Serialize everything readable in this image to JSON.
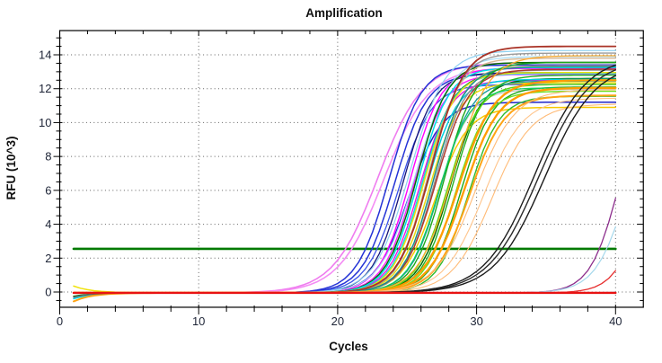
{
  "chart_data": {
    "type": "line",
    "title": "Amplification",
    "xlabel": "Cycles",
    "ylabel": "RFU (10^3)",
    "xlim": [
      0,
      42
    ],
    "ylim": [
      -0.9,
      15.43
    ],
    "x_ticks": [
      0,
      10,
      20,
      30,
      40
    ],
    "y_ticks": [
      0,
      2,
      4,
      6,
      8,
      10,
      12,
      14
    ],
    "x_minor_step": 2,
    "y_minor_step": 0.5,
    "grid": "dotted",
    "legend": "none",
    "data_x_range": [
      1,
      40
    ],
    "point_step": 0.5,
    "threshold": {
      "value": 2.55,
      "color": "#007a00",
      "width": 2.6,
      "x_start": 1,
      "x_end": 40
    },
    "baseline": {
      "value": -0.05,
      "color": "#e81212",
      "width": 2.4,
      "x_start": 1,
      "x_end": 40
    },
    "curve_model": "y = plateau/(1+exp(-k*(x-mid))) + base + tail*exp(-(x-1)/1.3)",
    "curve_base": -0.05,
    "curves": [
      {
        "c": "#ef7cef",
        "m": 22.9,
        "p": 13.6,
        "k": 0.62,
        "w": 1.6
      },
      {
        "c": "#f48cf4",
        "m": 23.3,
        "p": 13.3,
        "k": 0.62,
        "w": 1.6,
        "t": -0.3
      },
      {
        "c": "#2433d6",
        "m": 23.7,
        "p": 13.45,
        "k": 0.85,
        "w": 1.5
      },
      {
        "c": "#2433d6",
        "m": 24.1,
        "p": 12.95,
        "k": 0.85,
        "w": 1.5
      },
      {
        "c": "#3a52e8",
        "m": 24.4,
        "p": 12.3,
        "k": 0.85,
        "w": 1.3
      },
      {
        "c": "#2026c8",
        "m": 25.1,
        "p": 11.25,
        "k": 0.85,
        "w": 1.5
      },
      {
        "c": "#151578",
        "m": 24.7,
        "p": 13.0,
        "k": 0.9,
        "w": 1.3
      },
      {
        "c": "#ff00ff",
        "m": 25.2,
        "p": 13.25,
        "k": 0.9,
        "w": 1.4
      },
      {
        "c": "#ff22ff",
        "m": 25.5,
        "p": 12.9,
        "k": 0.9,
        "w": 1.4
      },
      {
        "c": "#e816e8",
        "m": 25.9,
        "p": 12.55,
        "k": 0.9,
        "w": 1.4
      },
      {
        "c": "#8ed0f0",
        "m": 25.2,
        "p": 14.3,
        "k": 0.8,
        "w": 1.2
      },
      {
        "c": "#a6dcf5",
        "m": 25.6,
        "p": 13.95,
        "k": 0.8,
        "w": 1.2
      },
      {
        "c": "#056e05",
        "m": 25.7,
        "p": 13.6,
        "k": 0.9,
        "w": 1.5,
        "t": -0.2
      },
      {
        "c": "#0a7d0a",
        "m": 26.1,
        "p": 13.0,
        "k": 0.9,
        "w": 1.5
      },
      {
        "c": "#056e05",
        "m": 28.1,
        "p": 12.65,
        "k": 0.9,
        "w": 1.5
      },
      {
        "c": "#00dde8",
        "m": 25.8,
        "p": 13.3,
        "k": 0.9,
        "w": 1.5,
        "t": -0.35
      },
      {
        "c": "#18e0ea",
        "m": 26.1,
        "p": 12.95,
        "k": 0.9,
        "w": 1.5
      },
      {
        "c": "#00cfe0",
        "m": 26.4,
        "p": 12.6,
        "k": 0.9,
        "w": 1.5
      },
      {
        "c": "#f0e20a",
        "m": 26.2,
        "p": 13.0,
        "k": 0.9,
        "w": 1.5,
        "t": 0.4
      },
      {
        "c": "#e8da12",
        "m": 26.6,
        "p": 12.4,
        "k": 0.9,
        "w": 1.5
      },
      {
        "c": "#f6c800",
        "m": 27.0,
        "p": 10.95,
        "k": 0.85,
        "w": 1.5
      },
      {
        "c": "#d9b894",
        "m": 26.5,
        "p": 13.85,
        "k": 0.9,
        "w": 1.4
      },
      {
        "c": "#cfae88",
        "m": 26.9,
        "p": 13.4,
        "k": 0.9,
        "w": 1.4
      },
      {
        "c": "#9b9b9b",
        "m": 26.6,
        "p": 14.15,
        "k": 0.9,
        "w": 1.4,
        "t": -0.25
      },
      {
        "c": "#8f8f8f",
        "m": 27.0,
        "p": 13.15,
        "k": 0.9,
        "w": 1.4
      },
      {
        "c": "#c9c9c9",
        "m": 27.3,
        "p": 12.0,
        "k": 0.9,
        "w": 1.4
      },
      {
        "c": "#a93226",
        "m": 26.7,
        "p": 14.55,
        "k": 0.85,
        "w": 1.8
      },
      {
        "c": "#b03a2e",
        "m": 27.1,
        "p": 13.2,
        "k": 0.85,
        "w": 1.5
      },
      {
        "c": "#159090",
        "m": 26.9,
        "p": 13.35,
        "k": 0.9,
        "w": 1.4
      },
      {
        "c": "#1d9e9e",
        "m": 27.4,
        "p": 12.5,
        "k": 0.9,
        "w": 1.4
      },
      {
        "c": "#1ca81c",
        "m": 27.7,
        "p": 13.6,
        "k": 0.9,
        "w": 1.4
      },
      {
        "c": "#22b022",
        "m": 28.3,
        "p": 12.85,
        "k": 0.9,
        "w": 1.4
      },
      {
        "c": "#1ca81c",
        "m": 28.9,
        "p": 12.15,
        "k": 0.9,
        "w": 1.4
      },
      {
        "c": "#2fbb2f",
        "m": 29.4,
        "p": 11.6,
        "k": 0.9,
        "w": 1.4
      },
      {
        "c": "#58d60e",
        "m": 27.9,
        "p": 12.3,
        "k": 0.9,
        "w": 1.4
      },
      {
        "c": "#6ae01e",
        "m": 28.5,
        "p": 11.9,
        "k": 0.9,
        "w": 1.4
      },
      {
        "c": "#0ecc62",
        "m": 27.3,
        "p": 12.1,
        "k": 0.9,
        "w": 1.3
      },
      {
        "c": "#ff9d00",
        "m": 28.7,
        "p": 12.55,
        "k": 0.8,
        "w": 2.3
      },
      {
        "c": "#ff9d00",
        "m": 29.1,
        "p": 12.1,
        "k": 0.8,
        "w": 2.3
      },
      {
        "c": "#ffa415",
        "m": 29.5,
        "p": 11.65,
        "k": 0.8,
        "w": 2.0,
        "t": -0.5
      },
      {
        "c": "#ffab2e",
        "m": 28.3,
        "p": 14.0,
        "k": 0.8,
        "w": 1.3
      },
      {
        "c": "#ffbb77",
        "m": 29.9,
        "p": 12.0,
        "k": 0.7,
        "w": 1.1
      },
      {
        "c": "#ffc48a",
        "m": 30.5,
        "p": 11.5,
        "k": 0.7,
        "w": 1.1
      },
      {
        "c": "#ffbb77",
        "m": 31.1,
        "p": 11.15,
        "k": 0.7,
        "w": 1.1
      },
      {
        "c": "#1c1c1c",
        "m": 34.2,
        "p": 14.0,
        "k": 0.55,
        "w": 1.4
      },
      {
        "c": "#2a2a2a",
        "m": 34.5,
        "p": 13.8,
        "k": 0.55,
        "w": 1.4
      },
      {
        "c": "#1c1c1c",
        "m": 34.9,
        "p": 13.6,
        "k": 0.55,
        "w": 1.4
      },
      {
        "c": "#8c2d8c",
        "m": 40.3,
        "p": 13.0,
        "k": 0.95,
        "w": 1.3
      },
      {
        "c": "#a5d8ec",
        "m": 41.0,
        "p": 13.0,
        "k": 0.85,
        "w": 1.2
      },
      {
        "c": "#e62e2e",
        "m": 42.3,
        "p": 13.0,
        "k": 0.95,
        "w": 1.3
      },
      {
        "c": "#b5d5e5",
        "m": 47.0,
        "p": 13.0,
        "k": 0.8,
        "w": 1.2
      },
      {
        "c": "#5a5a5a",
        "m": 50.0,
        "p": 10.0,
        "k": 0.8,
        "w": 1.0,
        "t": -0.25
      }
    ]
  }
}
